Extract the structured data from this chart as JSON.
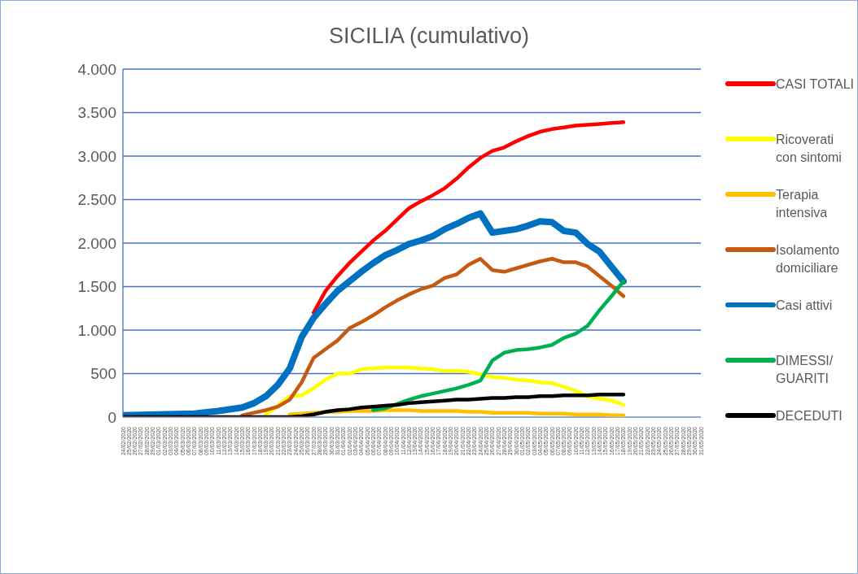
{
  "chart_data": {
    "type": "line",
    "title": "SICILIA (cumulativo)",
    "x": [
      "2020-02-24",
      "2020-03-01",
      "2020-03-07",
      "2020-03-11",
      "2020-03-15",
      "2020-03-17",
      "2020-03-19",
      "2020-03-21",
      "2020-03-23",
      "2020-03-25",
      "2020-03-27",
      "2020-03-29",
      "2020-03-31",
      "2020-04-02",
      "2020-04-04",
      "2020-04-06",
      "2020-04-08",
      "2020-04-10",
      "2020-04-12",
      "2020-04-14",
      "2020-04-16",
      "2020-04-18",
      "2020-04-20",
      "2020-04-22",
      "2020-04-24",
      "2020-04-26",
      "2020-04-28",
      "2020-04-30",
      "2020-05-02",
      "2020-05-04",
      "2020-05-06",
      "2020-05-08",
      "2020-05-10",
      "2020-05-12",
      "2020-05-14",
      "2020-05-16",
      "2020-05-18"
    ],
    "series": [
      {
        "name": "CASI TOTALI",
        "color": "#ff0000",
        "values": [
          null,
          null,
          null,
          null,
          null,
          null,
          null,
          null,
          null,
          null,
          1200,
          1450,
          1620,
          1770,
          1900,
          2030,
          2140,
          2270,
          2400,
          2480,
          2550,
          2630,
          2740,
          2870,
          2980,
          3060,
          3100,
          3170,
          3230,
          3280,
          3310,
          3330,
          3350,
          3360,
          3370,
          3380,
          3390
        ]
      },
      {
        "name": "Ricoverati con sintomi",
        "color": "#ffff00",
        "values": [
          null,
          null,
          null,
          null,
          null,
          null,
          30,
          130,
          240,
          250,
          330,
          430,
          500,
          500,
          550,
          560,
          570,
          570,
          570,
          560,
          550,
          530,
          530,
          520,
          490,
          460,
          450,
          430,
          420,
          400,
          390,
          350,
          300,
          240,
          210,
          190,
          140
        ]
      },
      {
        "name": "Terapia intensiva",
        "color": "#ffc000",
        "values": [
          null,
          null,
          null,
          null,
          null,
          null,
          null,
          null,
          30,
          40,
          50,
          60,
          60,
          70,
          70,
          70,
          80,
          80,
          80,
          70,
          70,
          70,
          70,
          60,
          60,
          50,
          50,
          50,
          50,
          40,
          40,
          40,
          30,
          30,
          30,
          20,
          20
        ]
      },
      {
        "name": "Isolamento domiciliare",
        "color": "#c55a11",
        "values": [
          null,
          null,
          null,
          null,
          20,
          50,
          80,
          120,
          200,
          400,
          680,
          780,
          880,
          1020,
          1090,
          1170,
          1260,
          1340,
          1410,
          1470,
          1510,
          1600,
          1640,
          1750,
          1820,
          1690,
          1670,
          1710,
          1750,
          1790,
          1820,
          1780,
          1780,
          1730,
          1620,
          1510,
          1390
        ]
      },
      {
        "name": "Casi attivi",
        "color": "#0070c0",
        "values": [
          20,
          30,
          40,
          70,
          110,
          160,
          240,
          370,
          560,
          920,
          1140,
          1300,
          1450,
          1560,
          1670,
          1770,
          1860,
          1920,
          1990,
          2030,
          2080,
          2160,
          2220,
          2290,
          2340,
          2120,
          2140,
          2160,
          2200,
          2250,
          2240,
          2140,
          2120,
          1990,
          1900,
          1730,
          1560
        ]
      },
      {
        "name": "DIMESSI/ GUARITI",
        "color": "#00b050",
        "values": [
          null,
          null,
          null,
          null,
          null,
          null,
          null,
          null,
          null,
          null,
          null,
          null,
          null,
          null,
          null,
          80,
          100,
          150,
          200,
          240,
          270,
          300,
          330,
          370,
          420,
          650,
          740,
          770,
          780,
          800,
          830,
          910,
          960,
          1050,
          1230,
          1390,
          1560
        ]
      },
      {
        "name": "DECEDUTI",
        "color": "#000000",
        "values": [
          0,
          0,
          0,
          0,
          0,
          0,
          0,
          0,
          0,
          10,
          30,
          60,
          80,
          90,
          110,
          120,
          130,
          140,
          160,
          170,
          180,
          190,
          200,
          200,
          210,
          220,
          220,
          230,
          230,
          240,
          240,
          250,
          250,
          250,
          260,
          260,
          260
        ]
      }
    ],
    "xlim": [
      "2020-02-24",
      "2020-05-31"
    ],
    "xticks": [
      {
        "value": "2020-02-24",
        "label": "24/02/2020"
      },
      {
        "value": "2020-02-25",
        "label": "25/02/2020"
      },
      {
        "value": "2020-02-26",
        "label": "26/02/2020"
      },
      {
        "value": "2020-02-27",
        "label": "27/02/2020"
      },
      {
        "value": "2020-02-28",
        "label": "28/02/2020"
      },
      {
        "value": "2020-02-29",
        "label": "29/02/2020"
      },
      {
        "value": "2020-03-01",
        "label": "01/03/2020"
      },
      {
        "value": "2020-03-02",
        "label": "02/03/2020"
      },
      {
        "value": "2020-03-03",
        "label": "03/03/2020"
      },
      {
        "value": "2020-03-04",
        "label": "04/03/2020"
      },
      {
        "value": "2020-03-05",
        "label": "05/03/2020"
      },
      {
        "value": "2020-03-06",
        "label": "06/03/2020"
      },
      {
        "value": "2020-03-07",
        "label": "07/03/2020"
      },
      {
        "value": "2020-03-08",
        "label": "08/03/2020"
      },
      {
        "value": "2020-03-09",
        "label": "09/03/2020"
      },
      {
        "value": "2020-03-10",
        "label": "10/03/2020"
      },
      {
        "value": "2020-03-11",
        "label": "11/03/2020"
      },
      {
        "value": "2020-03-12",
        "label": "12/03/2020"
      },
      {
        "value": "2020-03-13",
        "label": "13/03/2020"
      },
      {
        "value": "2020-03-14",
        "label": "14/03/2020"
      },
      {
        "value": "2020-03-15",
        "label": "15/03/2020"
      },
      {
        "value": "2020-03-16",
        "label": "16/03/2020"
      },
      {
        "value": "2020-03-17",
        "label": "17/03/2020"
      },
      {
        "value": "2020-03-18",
        "label": "18/03/2020"
      },
      {
        "value": "2020-03-19",
        "label": "19/03/2020"
      },
      {
        "value": "2020-03-20",
        "label": "20/03/2020"
      },
      {
        "value": "2020-03-21",
        "label": "21/03/2020"
      },
      {
        "value": "2020-03-22",
        "label": "22/03/2020"
      },
      {
        "value": "2020-03-23",
        "label": "23/03/2020"
      },
      {
        "value": "2020-03-24",
        "label": "24/03/2020"
      },
      {
        "value": "2020-03-25",
        "label": "25/03/2020"
      },
      {
        "value": "2020-03-26",
        "label": "26/03/2020"
      },
      {
        "value": "2020-03-27",
        "label": "27/03/2020"
      },
      {
        "value": "2020-03-28",
        "label": "28/03/2020"
      },
      {
        "value": "2020-03-29",
        "label": "29/03/2020"
      },
      {
        "value": "2020-03-30",
        "label": "30/03/2020"
      },
      {
        "value": "2020-03-31",
        "label": "31/03/2020"
      },
      {
        "value": "2020-04-01",
        "label": "01/04/2020"
      },
      {
        "value": "2020-04-02",
        "label": "02/04/2020"
      },
      {
        "value": "2020-04-03",
        "label": "03/04/2020"
      },
      {
        "value": "2020-04-04",
        "label": "04/04/2020"
      },
      {
        "value": "2020-04-05",
        "label": "05/04/2020"
      },
      {
        "value": "2020-04-06",
        "label": "06/04/2020"
      },
      {
        "value": "2020-04-07",
        "label": "07/04/2020"
      },
      {
        "value": "2020-04-08",
        "label": "08/04/2020"
      },
      {
        "value": "2020-04-09",
        "label": "09/04/2020"
      },
      {
        "value": "2020-04-10",
        "label": "10/04/2020"
      },
      {
        "value": "2020-04-11",
        "label": "11/04/2020"
      },
      {
        "value": "2020-04-12",
        "label": "12/04/2020"
      },
      {
        "value": "2020-04-13",
        "label": "13/04/2020"
      },
      {
        "value": "2020-04-14",
        "label": "14/04/2020"
      },
      {
        "value": "2020-04-15",
        "label": "15/04/2020"
      },
      {
        "value": "2020-04-16",
        "label": "16/04/2020"
      },
      {
        "value": "2020-04-17",
        "label": "17/04/2020"
      },
      {
        "value": "2020-04-18",
        "label": "18/04/2020"
      },
      {
        "value": "2020-04-19",
        "label": "19/04/2020"
      },
      {
        "value": "2020-04-20",
        "label": "20/04/2020"
      },
      {
        "value": "2020-04-21",
        "label": "21/04/2020"
      },
      {
        "value": "2020-04-22",
        "label": "22/04/2020"
      },
      {
        "value": "2020-04-23",
        "label": "23/04/2020"
      },
      {
        "value": "2020-04-24",
        "label": "24/04/2020"
      },
      {
        "value": "2020-04-25",
        "label": "25/04/2020"
      },
      {
        "value": "2020-04-26",
        "label": "26/04/2020"
      },
      {
        "value": "2020-04-27",
        "label": "27/04/2020"
      },
      {
        "value": "2020-04-28",
        "label": "28/04/2020"
      },
      {
        "value": "2020-04-29",
        "label": "29/04/2020"
      },
      {
        "value": "2020-04-30",
        "label": "30/04/2020"
      },
      {
        "value": "2020-05-01",
        "label": "01/05/2020"
      },
      {
        "value": "2020-05-02",
        "label": "02/05/2020"
      },
      {
        "value": "2020-05-03",
        "label": "03/05/2020"
      },
      {
        "value": "2020-05-04",
        "label": "04/05/2020"
      },
      {
        "value": "2020-05-05",
        "label": "05/05/2020"
      },
      {
        "value": "2020-05-06",
        "label": "06/05/2020"
      },
      {
        "value": "2020-05-07",
        "label": "07/05/2020"
      },
      {
        "value": "2020-05-08",
        "label": "08/05/2020"
      },
      {
        "value": "2020-05-09",
        "label": "09/05/2020"
      },
      {
        "value": "2020-05-10",
        "label": "10/05/2020"
      },
      {
        "value": "2020-05-11",
        "label": "11/05/2020"
      },
      {
        "value": "2020-05-12",
        "label": "12/05/2020"
      },
      {
        "value": "2020-05-13",
        "label": "13/05/2020"
      },
      {
        "value": "2020-05-14",
        "label": "14/05/2020"
      },
      {
        "value": "2020-05-15",
        "label": "15/05/2020"
      },
      {
        "value": "2020-05-16",
        "label": "16/05/2020"
      },
      {
        "value": "2020-05-17",
        "label": "17/05/2020"
      },
      {
        "value": "2020-05-18",
        "label": "18/05/2020"
      },
      {
        "value": "2020-05-19",
        "label": "19/05/2020"
      },
      {
        "value": "2020-05-20",
        "label": "20/05/2020"
      },
      {
        "value": "2020-05-21",
        "label": "21/05/2020"
      },
      {
        "value": "2020-05-22",
        "label": "22/05/2020"
      },
      {
        "value": "2020-05-23",
        "label": "23/05/2020"
      },
      {
        "value": "2020-05-24",
        "label": "24/05/2020"
      },
      {
        "value": "2020-05-25",
        "label": "25/05/2020"
      },
      {
        "value": "2020-05-26",
        "label": "26/05/2020"
      },
      {
        "value": "2020-05-27",
        "label": "27/05/2020"
      },
      {
        "value": "2020-05-28",
        "label": "28/05/2020"
      },
      {
        "value": "2020-05-29",
        "label": "29/05/2020"
      },
      {
        "value": "2020-05-30",
        "label": "30/05/2020"
      },
      {
        "value": "2020-05-31",
        "label": "31/05/2020"
      }
    ],
    "ylim": [
      0,
      4000
    ],
    "yticks": [
      0,
      500,
      {
        "value": 1000,
        "label": "1.000"
      },
      {
        "value": 1500,
        "label": "1.500"
      },
      {
        "value": 2000,
        "label": "2.000"
      },
      {
        "value": 2500,
        "label": "2.500"
      },
      {
        "value": 3000,
        "label": "3.000"
      },
      {
        "value": 3500,
        "label": "3.500"
      },
      {
        "value": 4000,
        "label": "4.000"
      }
    ],
    "grid": "y",
    "legend": "right",
    "marker": "none",
    "line_style": "solid"
  }
}
